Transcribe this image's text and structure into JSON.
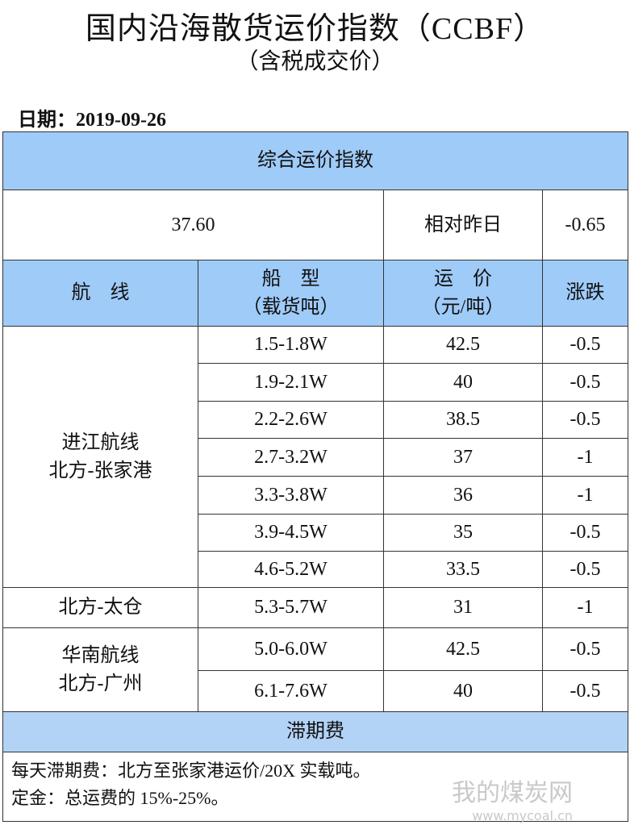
{
  "header": {
    "title": "国内沿海散货运价指数（CCBF）",
    "subtitle": "（含税成交价）",
    "date": "日期：2019-09-26"
  },
  "table": {
    "composite_title": "综合运价指数",
    "composite_value": "37.60",
    "compare_label": "相对昨日",
    "composite_change": "-0.65",
    "columns": [
      [
        "航　线"
      ],
      [
        "船　型",
        "（载货吨）"
      ],
      [
        "运　价",
        "（元/吨）"
      ],
      [
        "涨跌"
      ]
    ],
    "groups": [
      {
        "route": [
          "进江航线",
          "北方-张家港"
        ],
        "rows": [
          [
            "1.5-1.8W",
            "42.5",
            "-0.5"
          ],
          [
            "1.9-2.1W",
            "40",
            "-0.5"
          ],
          [
            "2.2-2.6W",
            "38.5",
            "-0.5"
          ],
          [
            "2.7-3.2W",
            "37",
            "-1"
          ],
          [
            "3.3-3.8W",
            "36",
            "-1"
          ],
          [
            "3.9-4.5W",
            "35",
            "-0.5"
          ],
          [
            "4.6-5.2W",
            "33.5",
            "-0.5"
          ]
        ]
      },
      {
        "route": [
          "北方-太仓"
        ],
        "rows": [
          [
            "5.3-5.7W",
            "31",
            "-1"
          ]
        ]
      },
      {
        "route": [
          "华南航线",
          "北方-广州"
        ],
        "rows": [
          [
            "5.0-6.0W",
            "42.5",
            "-0.5"
          ],
          [
            "6.1-7.6W",
            "40",
            "-0.5"
          ]
        ]
      }
    ]
  },
  "demurrage": {
    "title": "滞期费",
    "lines": [
      "每天滞期费：北方至张家港运价/20X 实载吨。",
      "定金：总运费的 15%-25%。"
    ]
  },
  "watermark": {
    "name": "我的煤炭网",
    "url": "www.mycoal.cn"
  }
}
